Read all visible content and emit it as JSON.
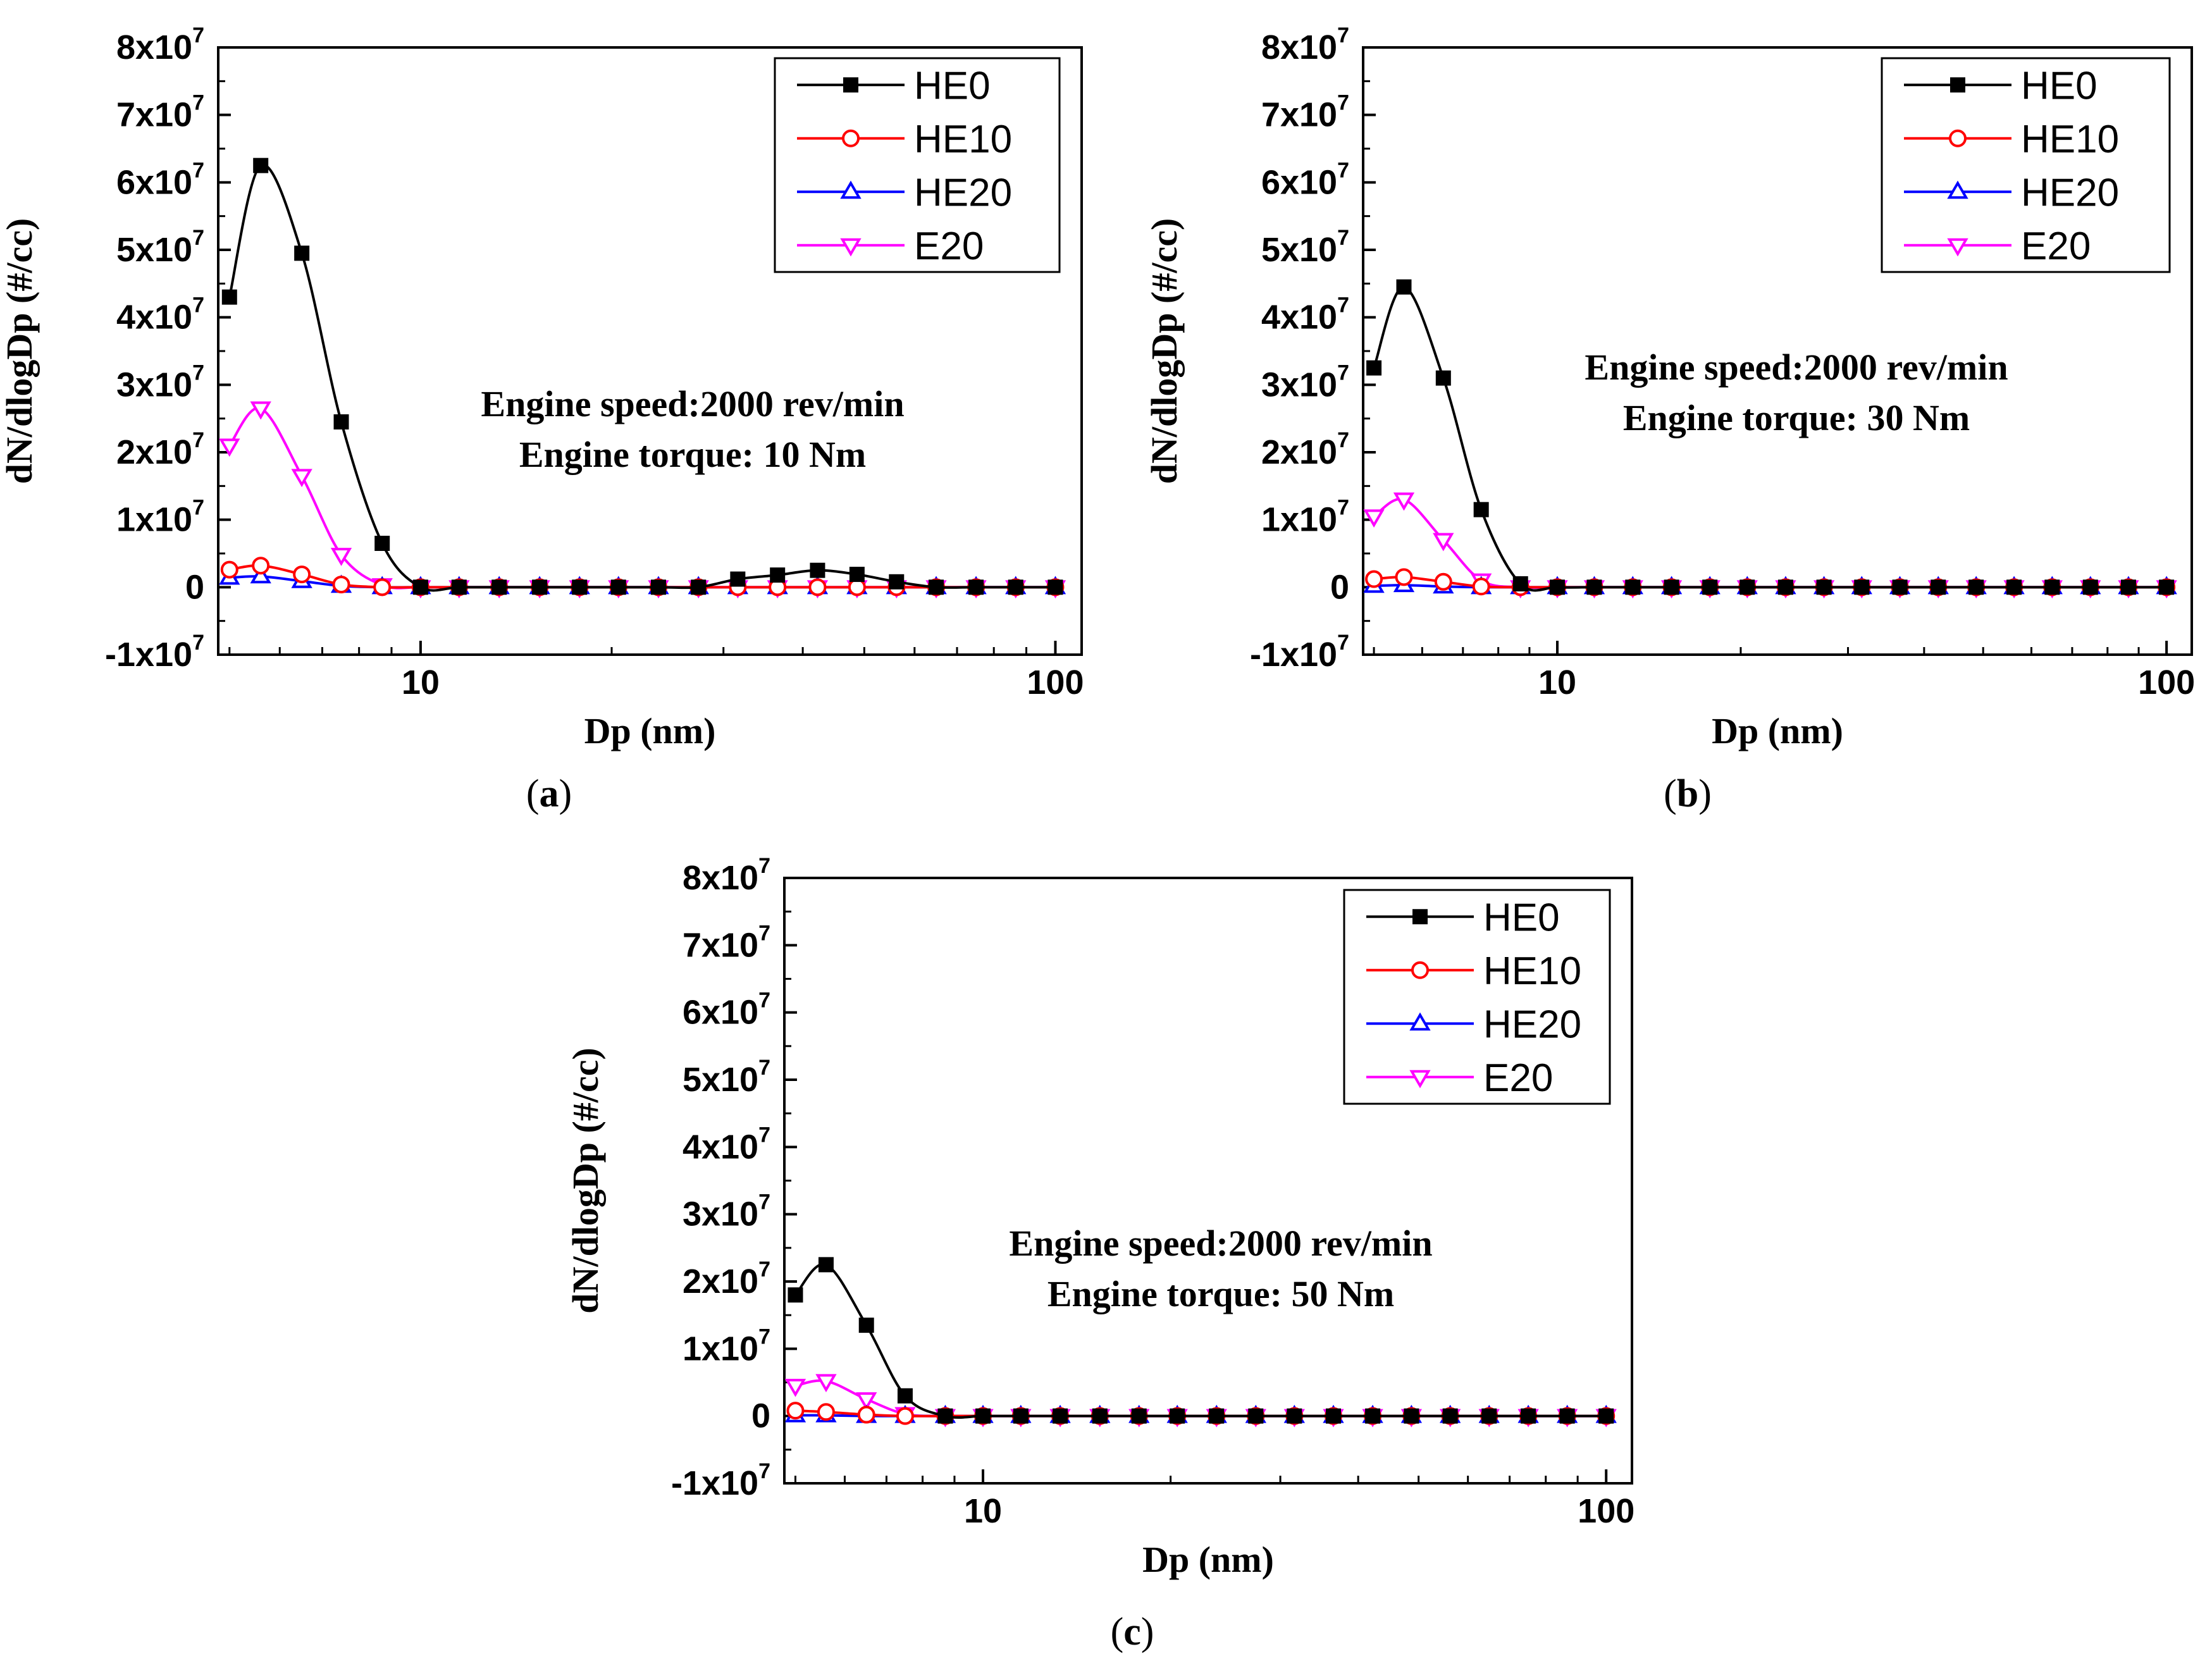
{
  "chart_data": [
    {
      "panel": "(a)",
      "panel_letter": "a",
      "type": "line",
      "xlabel": "Dp (nm)",
      "ylabel": "dN/dlogDp (#/cc)",
      "xscale": "log",
      "xlim": [
        4.8,
        110
      ],
      "ylim": [
        -10000000.0,
        80000000.0
      ],
      "xticks": [
        {
          "value": 10,
          "label": "10"
        },
        {
          "value": 100,
          "label": "100"
        }
      ],
      "yticks": [
        {
          "value": -10000000.0,
          "mant": "-1x10",
          "exp": "7"
        },
        {
          "value": 0,
          "mant": "0",
          "exp": ""
        },
        {
          "value": 10000000.0,
          "mant": "1x10",
          "exp": "7"
        },
        {
          "value": 20000000.0,
          "mant": "2x10",
          "exp": "7"
        },
        {
          "value": 30000000.0,
          "mant": "3x10",
          "exp": "7"
        },
        {
          "value": 40000000.0,
          "mant": "4x10",
          "exp": "7"
        },
        {
          "value": 50000000.0,
          "mant": "5x10",
          "exp": "7"
        },
        {
          "value": 60000000.0,
          "mant": "6x10",
          "exp": "7"
        },
        {
          "value": 70000000.0,
          "mant": "7x10",
          "exp": "7"
        },
        {
          "value": 80000000.0,
          "mant": "8x10",
          "exp": "7"
        }
      ],
      "annotation": [
        "Engine speed:2000 rev/min",
        "Engine torque: 10 Nm"
      ],
      "legend_position": "top-right",
      "x": [
        5.0,
        5.6,
        6.5,
        7.5,
        8.7,
        10.0,
        11.5,
        13.3,
        15.4,
        17.8,
        20.5,
        23.7,
        27.4,
        31.6,
        36.5,
        42.2,
        48.7,
        56.2,
        64.9,
        75.0,
        86.6,
        100.0
      ],
      "series": [
        {
          "name": "HE0",
          "color": "#000000",
          "marker": "square",
          "values": [
            43000000.0,
            62500000.0,
            49500000.0,
            24500000.0,
            6500000.0,
            0,
            0,
            0,
            0,
            0,
            0,
            0,
            0,
            1200000.0,
            1800000.0,
            2500000.0,
            1900000.0,
            800000.0,
            0,
            0,
            0,
            0
          ]
        },
        {
          "name": "HE10",
          "color": "#ff0000",
          "marker": "circle-open",
          "values": [
            2600000.0,
            3200000.0,
            1900000.0,
            400000.0,
            0,
            0,
            0,
            0,
            0,
            0,
            0,
            0,
            0,
            0,
            0,
            0,
            0,
            0,
            0,
            0,
            0,
            0
          ]
        },
        {
          "name": "HE20",
          "color": "#0000ff",
          "marker": "triangle-up-open",
          "values": [
            1400000.0,
            1600000.0,
            900000.0,
            200000.0,
            0,
            0,
            0,
            0,
            0,
            0,
            0,
            0,
            0,
            0,
            0,
            0,
            0,
            0,
            0,
            0,
            0,
            0
          ]
        },
        {
          "name": "E20",
          "color": "#ff00ff",
          "marker": "triangle-down-open",
          "values": [
            21000000.0,
            26500000.0,
            16500000.0,
            4800000.0,
            300000.0,
            0,
            0,
            0,
            0,
            0,
            0,
            0,
            0,
            0,
            0,
            0,
            0,
            0,
            0,
            0,
            0,
            0
          ]
        }
      ]
    },
    {
      "panel": "(b)",
      "panel_letter": "b",
      "type": "line",
      "xlabel": "Dp (nm)",
      "ylabel": "dN/dlogDp (#/cc)",
      "xscale": "log",
      "xlim": [
        4.8,
        110
      ],
      "ylim": [
        -10000000.0,
        80000000.0
      ],
      "xticks": [
        {
          "value": 10,
          "label": "10"
        },
        {
          "value": 100,
          "label": "100"
        }
      ],
      "yticks": [
        {
          "value": -10000000.0,
          "mant": "-1x10",
          "exp": "7"
        },
        {
          "value": 0,
          "mant": "0",
          "exp": ""
        },
        {
          "value": 10000000.0,
          "mant": "1x10",
          "exp": "7"
        },
        {
          "value": 20000000.0,
          "mant": "2x10",
          "exp": "7"
        },
        {
          "value": 30000000.0,
          "mant": "3x10",
          "exp": "7"
        },
        {
          "value": 40000000.0,
          "mant": "4x10",
          "exp": "7"
        },
        {
          "value": 50000000.0,
          "mant": "5x10",
          "exp": "7"
        },
        {
          "value": 60000000.0,
          "mant": "6x10",
          "exp": "7"
        },
        {
          "value": 70000000.0,
          "mant": "7x10",
          "exp": "7"
        },
        {
          "value": 80000000.0,
          "mant": "8x10",
          "exp": "7"
        }
      ],
      "annotation": [
        "Engine speed:2000 rev/min",
        "Engine torque: 30 Nm"
      ],
      "legend_position": "top-right",
      "x": [
        5.0,
        5.6,
        6.5,
        7.5,
        8.7,
        10.0,
        11.5,
        13.3,
        15.4,
        17.8,
        20.5,
        23.7,
        27.4,
        31.6,
        36.5,
        42.2,
        48.7,
        56.2,
        64.9,
        75.0,
        86.6,
        100.0
      ],
      "series": [
        {
          "name": "HE0",
          "color": "#000000",
          "marker": "square",
          "values": [
            32500000.0,
            44500000.0,
            31000000.0,
            11500000.0,
            500000.0,
            0,
            0,
            0,
            0,
            0,
            0,
            0,
            0,
            0,
            0,
            0,
            0,
            0,
            0,
            0,
            0,
            0
          ]
        },
        {
          "name": "HE10",
          "color": "#ff0000",
          "marker": "circle-open",
          "values": [
            1200000.0,
            1500000.0,
            800000.0,
            100000.0,
            0,
            0,
            0,
            0,
            0,
            0,
            0,
            0,
            0,
            0,
            0,
            0,
            0,
            0,
            0,
            0,
            0,
            0
          ]
        },
        {
          "name": "HE20",
          "color": "#0000ff",
          "marker": "triangle-up-open",
          "values": [
            200000.0,
            300000.0,
            100000.0,
            0,
            0,
            0,
            0,
            0,
            0,
            0,
            0,
            0,
            0,
            0,
            0,
            0,
            0,
            0,
            0,
            0,
            0,
            0
          ]
        },
        {
          "name": "E20",
          "color": "#ff00ff",
          "marker": "triangle-down-open",
          "values": [
            10500000.0,
            13000000.0,
            7000000.0,
            1000000.0,
            0,
            0,
            0,
            0,
            0,
            0,
            0,
            0,
            0,
            0,
            0,
            0,
            0,
            0,
            0,
            0,
            0,
            0
          ]
        }
      ]
    },
    {
      "panel": "(c)",
      "panel_letter": "c",
      "type": "line",
      "xlabel": "Dp (nm)",
      "ylabel": "dN/dlogDp (#/cc)",
      "xscale": "log",
      "xlim": [
        4.8,
        110
      ],
      "ylim": [
        -10000000.0,
        80000000.0
      ],
      "xticks": [
        {
          "value": 10,
          "label": "10"
        },
        {
          "value": 100,
          "label": "100"
        }
      ],
      "yticks": [
        {
          "value": -10000000.0,
          "mant": "-1x10",
          "exp": "7"
        },
        {
          "value": 0,
          "mant": "0",
          "exp": ""
        },
        {
          "value": 10000000.0,
          "mant": "1x10",
          "exp": "7"
        },
        {
          "value": 20000000.0,
          "mant": "2x10",
          "exp": "7"
        },
        {
          "value": 30000000.0,
          "mant": "3x10",
          "exp": "7"
        },
        {
          "value": 40000000.0,
          "mant": "4x10",
          "exp": "7"
        },
        {
          "value": 50000000.0,
          "mant": "5x10",
          "exp": "7"
        },
        {
          "value": 60000000.0,
          "mant": "6x10",
          "exp": "7"
        },
        {
          "value": 70000000.0,
          "mant": "7x10",
          "exp": "7"
        },
        {
          "value": 80000000.0,
          "mant": "8x10",
          "exp": "7"
        }
      ],
      "annotation": [
        "Engine speed:2000 rev/min",
        "Engine torque: 50 Nm"
      ],
      "legend_position": "top-right",
      "x": [
        5.0,
        5.6,
        6.5,
        7.5,
        8.7,
        10.0,
        11.5,
        13.3,
        15.4,
        17.8,
        20.5,
        23.7,
        27.4,
        31.6,
        36.5,
        42.2,
        48.7,
        56.2,
        64.9,
        75.0,
        86.6,
        100.0
      ],
      "series": [
        {
          "name": "HE0",
          "color": "#000000",
          "marker": "square",
          "values": [
            18000000.0,
            22500000.0,
            13500000.0,
            3000000.0,
            0,
            0,
            0,
            0,
            0,
            0,
            0,
            0,
            0,
            0,
            0,
            0,
            0,
            0,
            0,
            0,
            0,
            0
          ]
        },
        {
          "name": "HE10",
          "color": "#ff0000",
          "marker": "circle-open",
          "values": [
            800000.0,
            600000.0,
            200000.0,
            0,
            0,
            0,
            0,
            0,
            0,
            0,
            0,
            0,
            0,
            0,
            0,
            0,
            0,
            0,
            0,
            0,
            0,
            0
          ]
        },
        {
          "name": "HE20",
          "color": "#0000ff",
          "marker": "triangle-up-open",
          "values": [
            100000.0,
            100000.0,
            0,
            0,
            0,
            0,
            0,
            0,
            0,
            0,
            0,
            0,
            0,
            0,
            0,
            0,
            0,
            0,
            0,
            0,
            0,
            0
          ]
        },
        {
          "name": "E20",
          "color": "#ff00ff",
          "marker": "triangle-down-open",
          "values": [
            4500000.0,
            5200000.0,
            2500000.0,
            300000.0,
            0,
            0,
            0,
            0,
            0,
            0,
            0,
            0,
            0,
            0,
            0,
            0,
            0,
            0,
            0,
            0,
            0,
            0
          ]
        }
      ]
    }
  ]
}
